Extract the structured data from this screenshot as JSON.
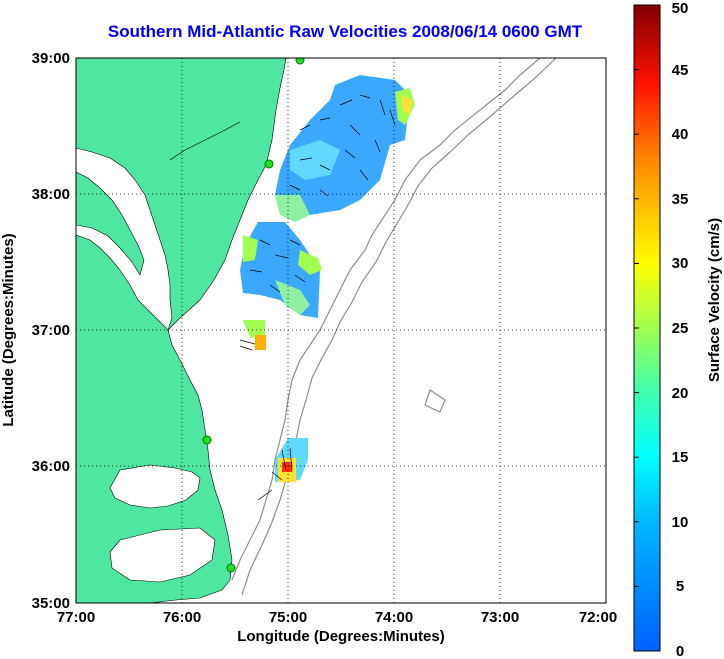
{
  "title": "Southern Mid-Atlantic Raw Velocities 2008/06/14 0600 GMT",
  "xlabel": "Longitude (Degrees:Minutes)",
  "ylabel": "Latitude (Degrees:Minutes)",
  "x_ticks": [
    "77:00",
    "76:00",
    "75:00",
    "74:00",
    "73:00",
    "72:00"
  ],
  "y_ticks": [
    "39:00",
    "38:00",
    "37:00",
    "36:00",
    "35:00"
  ],
  "colorbar": {
    "label": "Surface Velocity (cm/s)",
    "ticks": [
      "0",
      "5",
      "10",
      "15",
      "20",
      "25",
      "30",
      "35",
      "40",
      "45",
      "50"
    ],
    "range": [
      0,
      50
    ]
  },
  "colors": {
    "land": "#4ee6a0",
    "water": "#ffffff",
    "bathymetry": "#8c8c8c",
    "title": "#0000ff",
    "station": "#22dd22"
  },
  "map_bounds": {
    "lon": [
      -77,
      -72
    ],
    "lat": [
      35,
      39
    ]
  }
}
